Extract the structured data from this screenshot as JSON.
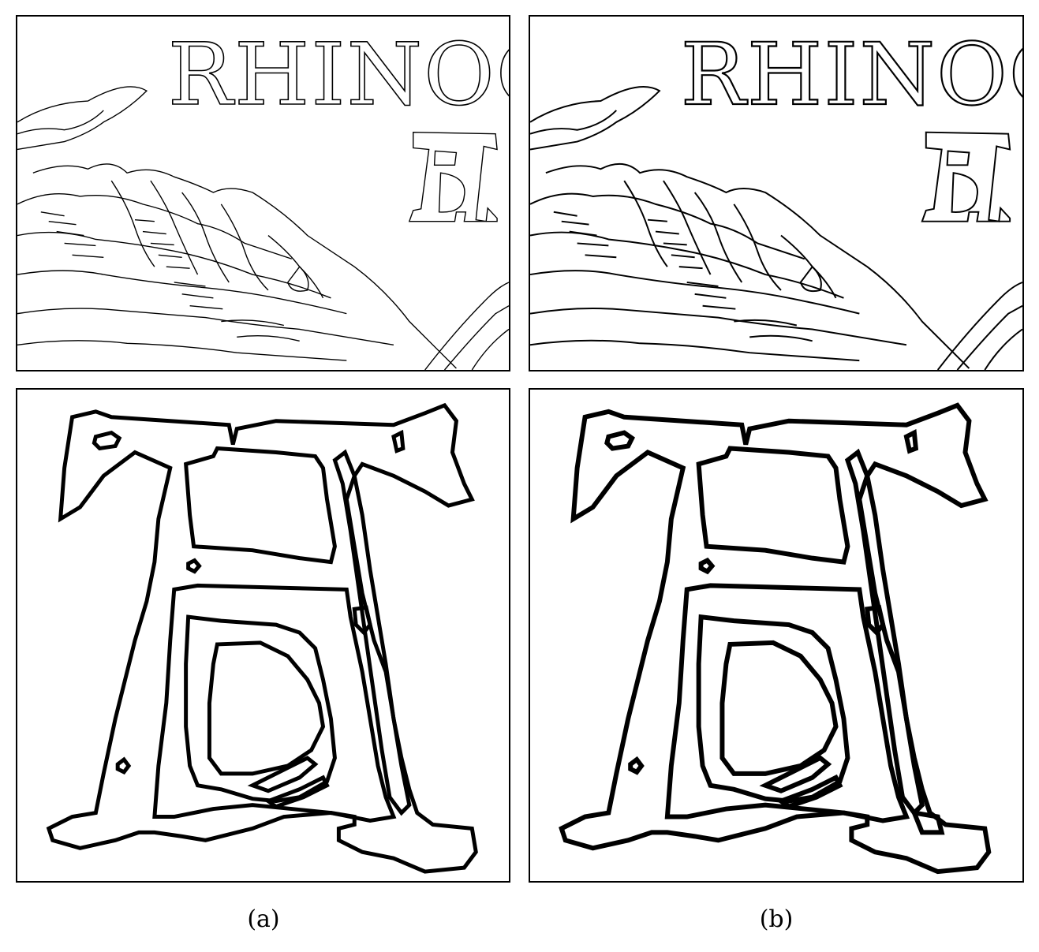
{
  "figure": {
    "panels": [
      {
        "id": "a-top",
        "caption_ref": "a",
        "content": "edge-map-engraving-thin"
      },
      {
        "id": "b-top",
        "caption_ref": "b",
        "content": "edge-map-engraving-bold"
      },
      {
        "id": "a-bottom",
        "caption_ref": "a",
        "content": "edge-map-monogram-thin"
      },
      {
        "id": "b-bottom",
        "caption_ref": "b",
        "content": "edge-map-monogram-bold"
      }
    ],
    "captions": {
      "a": "(a)",
      "b": "(b)"
    },
    "inscription": "RHINOC",
    "colors": {
      "ink": "#000000",
      "paper": "#ffffff"
    }
  }
}
